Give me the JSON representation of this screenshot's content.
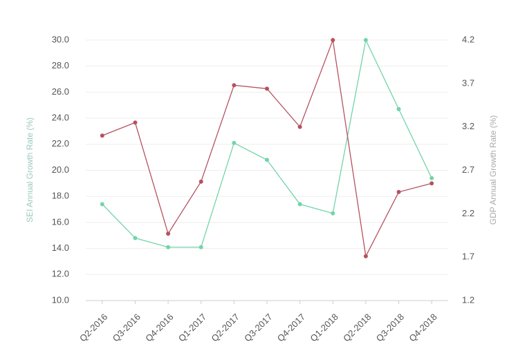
{
  "chart_data": {
    "type": "line",
    "y_label": "SEI Annual Growth Rate (%)",
    "y2_label": "GDP Annual Growth Rate (%)",
    "categories": [
      "Q2-2016",
      "Q3-2016",
      "Q4-2016",
      "Q1-2017",
      "Q2-2017",
      "Q3-2017",
      "Q4-2017",
      "Q1-2018",
      "Q2-2018",
      "Q3-2018",
      "Q4-2018"
    ],
    "series": [
      {
        "color": "#72d4a8",
        "axis": "y",
        "values": [
          17.4,
          14.8,
          14.1,
          14.1,
          22.1,
          20.8,
          17.4,
          16.7,
          30.0,
          24.7,
          19.4
        ]
      },
      {
        "color": "#b5525f",
        "axis": "y2",
        "values": [
          3.1,
          3.25,
          1.97,
          2.57,
          3.68,
          3.64,
          3.2,
          4.2,
          1.71,
          2.45,
          2.55
        ]
      }
    ],
    "ylim": [
      10,
      30
    ],
    "yticks": [
      {
        "value": 10,
        "label": "10.0"
      },
      {
        "value": 12,
        "label": "12.0"
      },
      {
        "value": 14,
        "label": "14.0"
      },
      {
        "value": 16,
        "label": "16.0"
      },
      {
        "value": 18,
        "label": "18.0"
      },
      {
        "value": 20,
        "label": "20.0"
      },
      {
        "value": 22,
        "label": "22.0"
      },
      {
        "value": 24,
        "label": "24.0"
      },
      {
        "value": 26,
        "label": "26.0"
      },
      {
        "value": 28,
        "label": "28.0"
      },
      {
        "value": 30,
        "label": "30.0"
      }
    ],
    "y2lim": [
      1.2,
      4.2
    ],
    "y2ticks": [
      1.2,
      1.7,
      2.2,
      2.7,
      3.2,
      3.7,
      4.2
    ],
    "grid": true
  }
}
